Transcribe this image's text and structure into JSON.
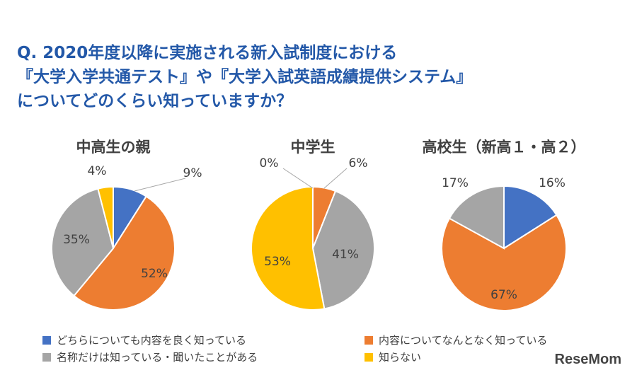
{
  "title_lines": [
    "Q. 2020年度以降に実施される新入試制度における",
    "『大学入学共通テスト』や『大学入試英語成績提供システム』",
    "についてどのくらい知っていますか？"
  ],
  "colors": {
    "blue": "#4472c4",
    "orange": "#ed7d31",
    "gray": "#a5a5a5",
    "yellow": "#ffc000",
    "title": "#2358a8"
  },
  "legend": [
    {
      "label": "どちらについても内容を良く知っている",
      "color": "#4472c4"
    },
    {
      "label": "内容についてなんとなく知っている",
      "color": "#ed7d31"
    },
    {
      "label": "名称だけは知っている・聞いたことがある",
      "color": "#a5a5a5"
    },
    {
      "label": "知らない",
      "color": "#ffc000"
    }
  ],
  "chart_data": [
    {
      "type": "pie",
      "title": "中高生の親",
      "labels": [
        "9%",
        "52%",
        "35%",
        "4%"
      ],
      "values": [
        9,
        52,
        35,
        4
      ],
      "colors": [
        "#4472c4",
        "#ed7d31",
        "#a5a5a5",
        "#ffc000"
      ]
    },
    {
      "type": "pie",
      "title": "中学生",
      "labels": [
        "0%",
        "6%",
        "41%",
        "53%"
      ],
      "values": [
        0,
        6,
        41,
        53
      ],
      "colors": [
        "#4472c4",
        "#ed7d31",
        "#a5a5a5",
        "#ffc000"
      ]
    },
    {
      "type": "pie",
      "title": "高校生（新高１・高２）",
      "labels": [
        "16%",
        "67%",
        "17%"
      ],
      "values": [
        16,
        67,
        17
      ],
      "colors": [
        "#4472c4",
        "#ed7d31",
        "#a5a5a5"
      ]
    }
  ],
  "logo": "ReseMom"
}
